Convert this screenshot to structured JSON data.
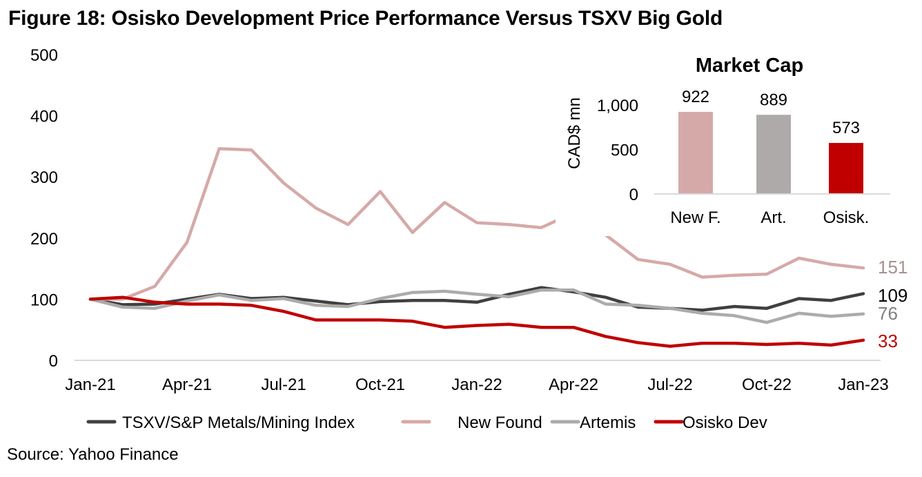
{
  "figure": {
    "title": "Figure 18: Osisko Development Price Performance Versus TSXV Big Gold",
    "source": "Source: Yahoo Finance"
  },
  "chart_data": [
    {
      "type": "line",
      "title": "",
      "xlabel": "",
      "ylabel": "",
      "ylim": [
        0,
        500
      ],
      "yticks": [
        0,
        100,
        200,
        300,
        400,
        500
      ],
      "grid": false,
      "x": [
        "Jan-21",
        "Feb-21",
        "Mar-21",
        "Apr-21",
        "May-21",
        "Jun-21",
        "Jul-21",
        "Aug-21",
        "Sep-21",
        "Oct-21",
        "Nov-21",
        "Dec-21",
        "Jan-22",
        "Feb-22",
        "Mar-22",
        "Apr-22",
        "May-22",
        "Jun-22",
        "Jul-22",
        "Aug-22",
        "Sep-22",
        "Oct-22",
        "Nov-22",
        "Dec-22",
        "Jan-23"
      ],
      "xtick_labels": [
        "Jan-21",
        "Apr-21",
        "Jul-21",
        "Oct-21",
        "Jan-22",
        "Apr-22",
        "Jul-22",
        "Oct-22",
        "Jan-23"
      ],
      "legend_position": "bottom",
      "series": [
        {
          "name": "TSXV/S&P Metals/Mining Index",
          "color": "#404040",
          "end_label": "109",
          "end_label_color": "#000000",
          "values": [
            100,
            91,
            92,
            100,
            108,
            101,
            103,
            97,
            91,
            96,
            98,
            98,
            95,
            108,
            119,
            112,
            103,
            87,
            85,
            82,
            88,
            85,
            101,
            98,
            109
          ]
        },
        {
          "name": "New Found",
          "color": "#D6A9A9",
          "end_label": "151",
          "end_label_color": "#A89090",
          "values": [
            100,
            100,
            121,
            193,
            346,
            344,
            290,
            249,
            222,
            276,
            209,
            258,
            225,
            222,
            217,
            241,
            205,
            165,
            157,
            136,
            139,
            141,
            167,
            157,
            151
          ]
        },
        {
          "name": "Artemis",
          "color": "#AEAAAA",
          "end_label": "76",
          "end_label_color": "#808080",
          "values": [
            100,
            87,
            85,
            97,
            107,
            98,
            101,
            90,
            88,
            101,
            111,
            113,
            108,
            104,
            115,
            115,
            92,
            90,
            85,
            77,
            73,
            62,
            77,
            72,
            76
          ]
        },
        {
          "name": "Osisko Dev",
          "color": "#C00000",
          "end_label": "33",
          "end_label_color": "#C00000",
          "values": [
            100,
            103,
            95,
            92,
            92,
            90,
            80,
            66,
            66,
            66,
            64,
            54,
            57,
            59,
            54,
            54,
            39,
            29,
            23,
            28,
            28,
            26,
            28,
            25,
            33
          ]
        }
      ]
    },
    {
      "type": "bar",
      "title": "Market Cap",
      "xlabel": "",
      "ylabel": "CAD$ mn",
      "ylim": [
        0,
        1000
      ],
      "yticks": [
        0,
        500,
        1000
      ],
      "ytick_labels": [
        "0",
        "500",
        "1,000"
      ],
      "grid": false,
      "categories": [
        "New F.",
        "Art.",
        "Osisk."
      ],
      "values": [
        922,
        889,
        573
      ],
      "value_labels": [
        "922",
        "889",
        "573"
      ],
      "colors": [
        "#D6A9A9",
        "#AEAAAA",
        "#C00000"
      ]
    }
  ]
}
